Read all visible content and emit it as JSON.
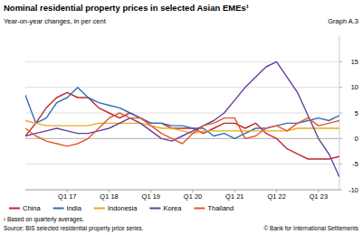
{
  "chart_data": {
    "type": "line",
    "title": "Nominal residential property prices in selected Asian EMEs¹",
    "subtitle": "Year-on-year changes, in per cent",
    "graph_number": "Graph A.3",
    "notes": [
      "¹ Based on quarterly averages.",
      "Source: BIS selected residential property price series.",
      "© Bank for International Settlements"
    ],
    "categories": [
      null,
      null,
      null,
      null,
      "Q1 17",
      null,
      null,
      null,
      "Q1 18",
      null,
      null,
      null,
      "Q1 19",
      null,
      null,
      null,
      "Q1 20",
      null,
      null,
      null,
      "Q1 21",
      null,
      null,
      null,
      "Q1 22",
      null,
      null,
      null,
      "Q1 23",
      null,
      null
    ],
    "series": [
      {
        "name": "China",
        "color": "#c0282d",
        "values": [
          0.5,
          3,
          6,
          8,
          9,
          8,
          8,
          6,
          5,
          4,
          5,
          4,
          3,
          3,
          2,
          2,
          2,
          1,
          2,
          3,
          3,
          2,
          3,
          1,
          0,
          -2,
          -3,
          -4,
          -4,
          -4,
          -3.5
        ]
      },
      {
        "name": "India",
        "color": "#2c6fb7",
        "values": [
          8.5,
          3,
          4,
          7,
          8,
          10,
          8,
          7,
          6.5,
          6,
          5,
          4,
          3,
          3,
          2.5,
          2.5,
          2,
          2,
          0.5,
          1,
          0,
          1,
          2,
          2,
          2.5,
          3,
          3,
          3.5,
          4,
          3.5,
          4.5
        ]
      },
      {
        "name": "Indonesia",
        "color": "#e8a820",
        "values": [
          3.5,
          3,
          2.5,
          2.5,
          2.5,
          2.5,
          2.5,
          3,
          3,
          3,
          3,
          3,
          2.5,
          2,
          2,
          1.5,
          1,
          1.5,
          1.5,
          1.5,
          1.5,
          1.5,
          1.5,
          1.5,
          1.5,
          1.5,
          2,
          2,
          2,
          2,
          2
        ]
      },
      {
        "name": "Korea",
        "color": "#6a3d9a",
        "values": [
          0.5,
          1,
          1.5,
          2,
          1.5,
          1,
          1,
          1.5,
          2,
          3,
          4,
          3,
          1.5,
          0,
          -0.5,
          0.5,
          1.5,
          2.5,
          3.5,
          5,
          7.5,
          10,
          12,
          14,
          15,
          12,
          9,
          4.5,
          0,
          -3,
          -7.5
        ]
      },
      {
        "name": "Thailand",
        "color": "#e4572e",
        "values": [
          2,
          0.5,
          -0.5,
          -1,
          -1.5,
          -1,
          0,
          2,
          4,
          5,
          4,
          4,
          2.5,
          1,
          0,
          -1,
          1,
          2.5,
          3,
          4,
          4,
          0,
          0.5,
          2,
          2.5,
          1.5,
          3,
          4,
          2.5,
          3,
          3.5
        ]
      }
    ],
    "ylim": [
      -10,
      20
    ],
    "yticks": [
      -10,
      -5,
      0,
      5,
      10,
      15
    ],
    "grid": true,
    "legend": "bottom"
  }
}
